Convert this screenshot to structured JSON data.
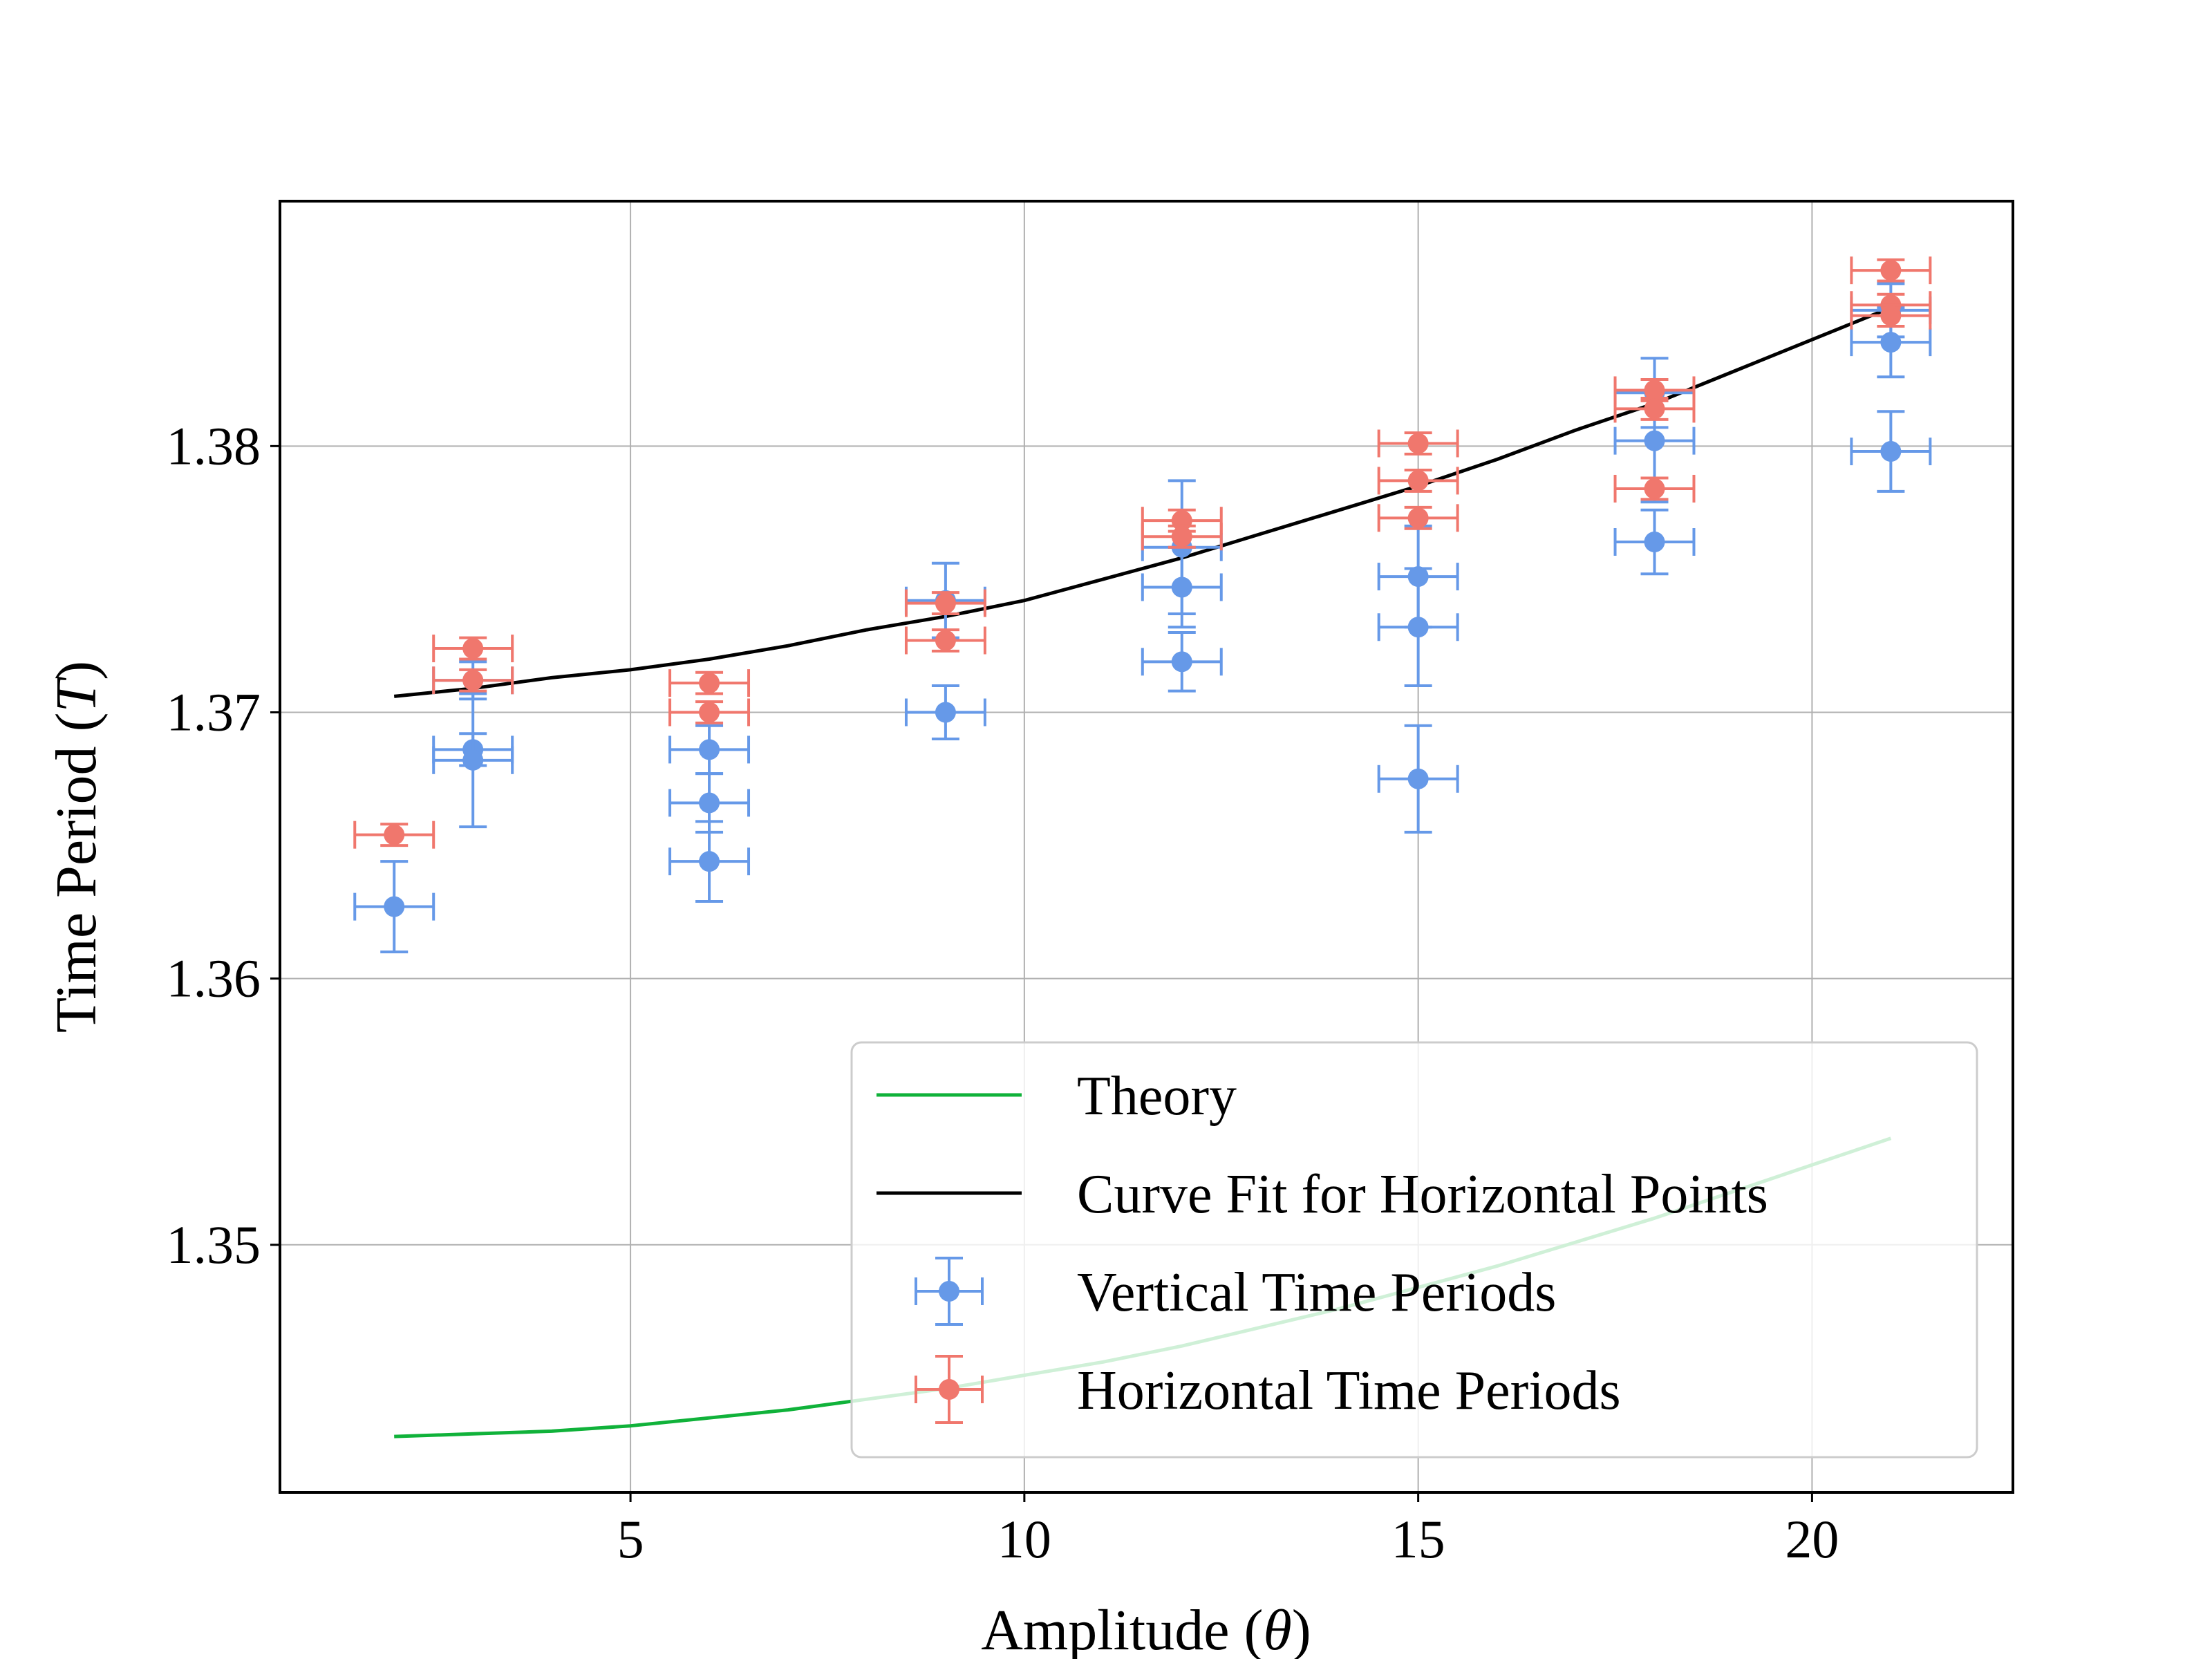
{
  "chart_data": {
    "type": "scatter",
    "xlabel": "Amplitude",
    "xlabel_symbol": "θ",
    "ylabel": "Time Period",
    "ylabel_symbol": "T",
    "xlim": [
      0.55,
      22.55
    ],
    "ylim": [
      1.3407,
      1.3892
    ],
    "x_ticks": [
      5,
      10,
      15,
      20
    ],
    "x_tick_labels": [
      "5",
      "10",
      "15",
      "20"
    ],
    "y_ticks": [
      1.35,
      1.36,
      1.37,
      1.38
    ],
    "y_tick_labels": [
      "1.35",
      "1.36",
      "1.37",
      "1.38"
    ],
    "grid": true,
    "legend_position": "lower-right",
    "x_error": 0.5,
    "series": [
      {
        "name": "Theory",
        "kind": "line",
        "color": "#10b23a",
        "x": [
          2,
          3,
          4,
          5,
          6,
          7,
          8,
          9,
          10,
          11,
          12,
          13,
          14,
          15,
          16,
          17,
          18,
          19,
          20,
          21
        ],
        "y": [
          1.3428,
          1.3429,
          1.343,
          1.3432,
          1.3435,
          1.3438,
          1.3442,
          1.3446,
          1.3451,
          1.3456,
          1.3462,
          1.3469,
          1.3476,
          1.3484,
          1.3492,
          1.3501,
          1.351,
          1.352,
          1.353,
          1.354
        ]
      },
      {
        "name": "Curve Fit for Horizontal Points",
        "kind": "line",
        "color": "#000000",
        "x": [
          2,
          3,
          4,
          5,
          6,
          7,
          8,
          9,
          10,
          11,
          12,
          13,
          14,
          15,
          16,
          17,
          18,
          19,
          20,
          21
        ],
        "y": [
          1.3706,
          1.3709,
          1.3713,
          1.3716,
          1.372,
          1.3725,
          1.3731,
          1.3736,
          1.3742,
          1.375,
          1.3758,
          1.3767,
          1.3776,
          1.3785,
          1.3795,
          1.3806,
          1.3816,
          1.3828,
          1.384,
          1.3852
        ]
      },
      {
        "name": "Vertical Time Periods",
        "kind": "errorbar",
        "color": "#6699e8",
        "points": [
          {
            "x": 2,
            "y": 1.3627,
            "yerr": 0.0017
          },
          {
            "x": 3,
            "y": 1.3712,
            "yerr": 0.0007
          },
          {
            "x": 3,
            "y": 1.3686,
            "yerr": 0.0006
          },
          {
            "x": 3,
            "y": 1.3682,
            "yerr": 0.0025
          },
          {
            "x": 6,
            "y": 1.3686,
            "yerr": 0.0009
          },
          {
            "x": 6,
            "y": 1.3666,
            "yerr": 0.0011
          },
          {
            "x": 6,
            "y": 1.3644,
            "yerr": 0.0015
          },
          {
            "x": 9,
            "y": 1.3742,
            "yerr": 0.0014
          },
          {
            "x": 9,
            "y": 1.37,
            "yerr": 0.001
          },
          {
            "x": 12,
            "y": 1.3762,
            "yerr": 0.0025
          },
          {
            "x": 12,
            "y": 1.3747,
            "yerr": 0.0015
          },
          {
            "x": 12,
            "y": 1.3719,
            "yerr": 0.0011
          },
          {
            "x": 15,
            "y": 1.3751,
            "yerr": 0.0019
          },
          {
            "x": 15,
            "y": 1.3732,
            "yerr": 0.0022
          },
          {
            "x": 15,
            "y": 1.3675,
            "yerr": 0.002
          },
          {
            "x": 18,
            "y": 1.382,
            "yerr": 0.0013
          },
          {
            "x": 18,
            "y": 1.3802,
            "yerr": 0.0023
          },
          {
            "x": 18,
            "y": 1.3764,
            "yerr": 0.0012
          },
          {
            "x": 21,
            "y": 1.3851,
            "yerr": 0.001
          },
          {
            "x": 21,
            "y": 1.3839,
            "yerr": 0.0013
          },
          {
            "x": 21,
            "y": 1.3798,
            "yerr": 0.0015
          }
        ]
      },
      {
        "name": "Horizontal Time Periods",
        "kind": "errorbar",
        "color": "#f0776d",
        "points": [
          {
            "x": 2,
            "y": 1.3654,
            "yerr": 0.0004
          },
          {
            "x": 3,
            "y": 1.3724,
            "yerr": 0.0004
          },
          {
            "x": 3,
            "y": 1.3712,
            "yerr": 0.0004
          },
          {
            "x": 6,
            "y": 1.3711,
            "yerr": 0.0004
          },
          {
            "x": 6,
            "y": 1.37,
            "yerr": 0.0004
          },
          {
            "x": 9,
            "y": 1.3741,
            "yerr": 0.0004
          },
          {
            "x": 9,
            "y": 1.3727,
            "yerr": 0.0004
          },
          {
            "x": 12,
            "y": 1.3772,
            "yerr": 0.0004
          },
          {
            "x": 12,
            "y": 1.3766,
            "yerr": 0.0004
          },
          {
            "x": 15,
            "y": 1.3801,
            "yerr": 0.0004
          },
          {
            "x": 15,
            "y": 1.3787,
            "yerr": 0.0004
          },
          {
            "x": 15,
            "y": 1.3773,
            "yerr": 0.0004
          },
          {
            "x": 18,
            "y": 1.3821,
            "yerr": 0.0004
          },
          {
            "x": 18,
            "y": 1.3814,
            "yerr": 0.0004
          },
          {
            "x": 18,
            "y": 1.3784,
            "yerr": 0.0004
          },
          {
            "x": 21,
            "y": 1.3866,
            "yerr": 0.0004
          },
          {
            "x": 21,
            "y": 1.3853,
            "yerr": 0.0004
          },
          {
            "x": 21,
            "y": 1.3849,
            "yerr": 0.0004
          }
        ]
      }
    ]
  }
}
